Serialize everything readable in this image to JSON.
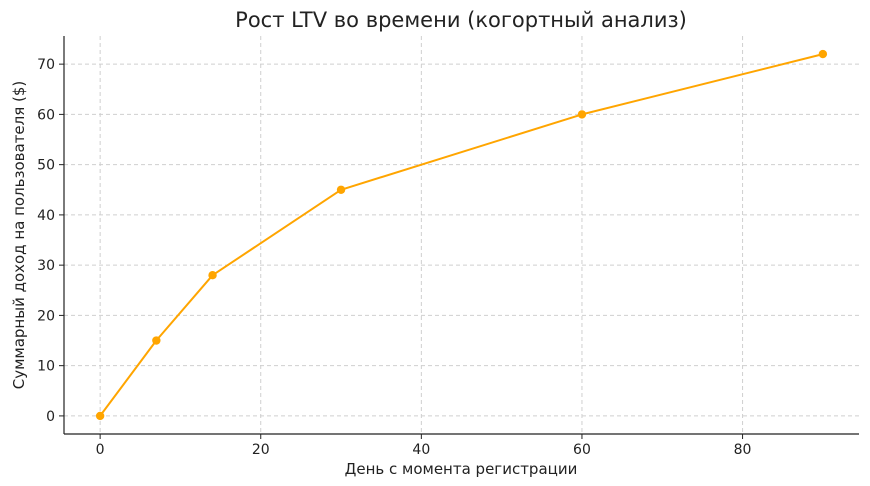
{
  "chart_data": {
    "type": "line",
    "title": "Рост LTV во времени (когортный анализ)",
    "xlabel": "День с момента регистрации",
    "ylabel": "Суммарный доход на пользователя ($)",
    "xlim": [
      -4.5,
      94.5
    ],
    "ylim": [
      -3.6,
      75.6
    ],
    "xticks": [
      0,
      20,
      40,
      60,
      80
    ],
    "yticks": [
      0,
      10,
      20,
      30,
      40,
      50,
      60,
      70
    ],
    "grid": true,
    "series": [
      {
        "color": "#FFA500",
        "x": [
          0,
          7,
          14,
          30,
          60,
          90
        ],
        "y": [
          0,
          15,
          28,
          45,
          60,
          72
        ]
      }
    ]
  }
}
